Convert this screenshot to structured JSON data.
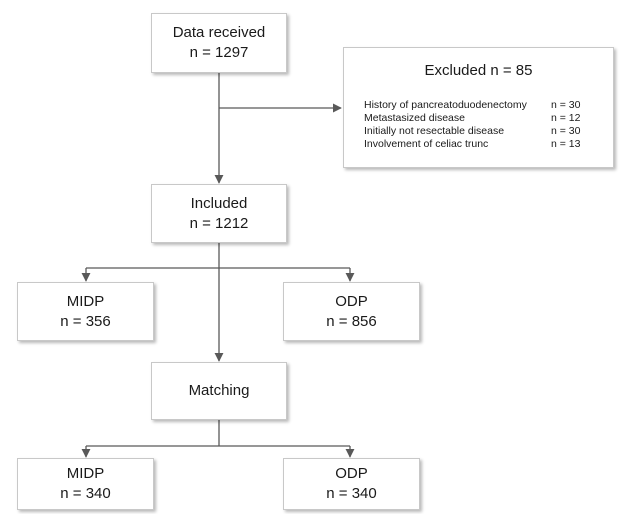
{
  "flowchart": {
    "data_received": {
      "label": "Data received",
      "count": "n = 1297"
    },
    "excluded": {
      "title": "Excluded n = 85",
      "reasons": [
        {
          "label": "History of pancreatoduodenectomy",
          "count": "n = 30"
        },
        {
          "label": "Metastasized disease",
          "count": "n = 12"
        },
        {
          "label": "Initially not resectable disease",
          "count": "n = 30"
        },
        {
          "label": "Involvement of celiac trunc",
          "count": "n = 13"
        }
      ]
    },
    "included": {
      "label": "Included",
      "count": "n = 1212"
    },
    "midp_before": {
      "label": "MIDP",
      "count": "n = 356"
    },
    "odp_before": {
      "label": "ODP",
      "count": "n = 856"
    },
    "matching": {
      "label": "Matching"
    },
    "midp_after": {
      "label": "MIDP",
      "count": "n = 340"
    },
    "odp_after": {
      "label": "ODP",
      "count": "n = 340"
    }
  },
  "colors": {
    "box_border": "#c8c8c8",
    "connector": "#595959",
    "text": "#1a1a1a"
  }
}
